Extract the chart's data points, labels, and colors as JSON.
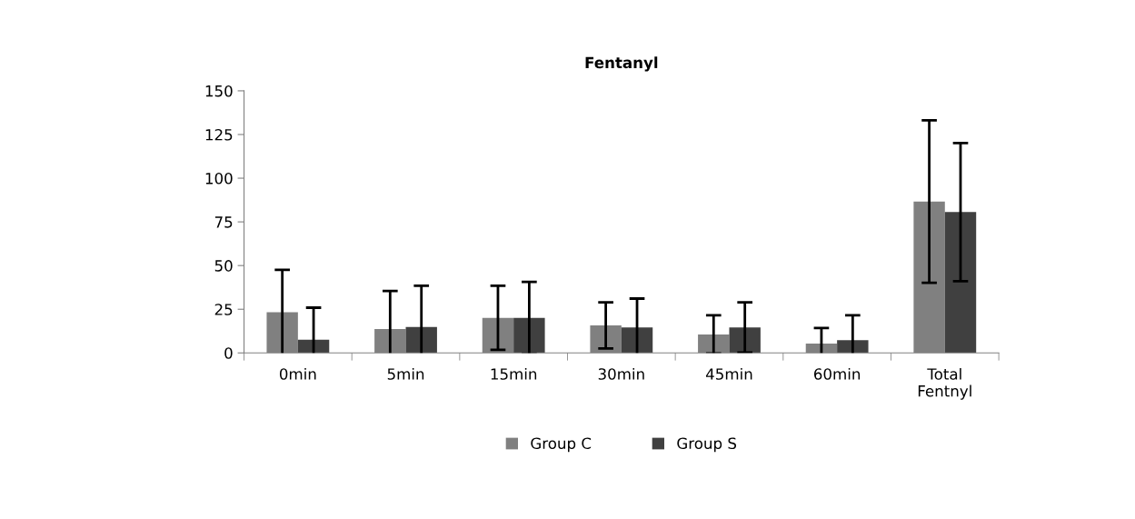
{
  "chart_data": {
    "type": "bar",
    "title": "Fentanyl",
    "categories": [
      "0min",
      "5min",
      "15min",
      "30min",
      "45min",
      "60min",
      "Total\nFentnyl"
    ],
    "series": [
      {
        "name": "Group C",
        "color": "#808080",
        "values": [
          23.3,
          13.7,
          20.1,
          15.8,
          10.6,
          5.4,
          86.6
        ],
        "errors": [
          24.3,
          21.7,
          18.3,
          13.2,
          10.9,
          8.8,
          46.5
        ]
      },
      {
        "name": "Group S",
        "color": "#404040",
        "values": [
          7.6,
          14.9,
          20.1,
          14.6,
          14.6,
          7.3,
          80.6
        ],
        "errors": [
          18.3,
          23.5,
          20.5,
          16.5,
          14.4,
          14.2,
          39.5
        ]
      }
    ],
    "ylim": [
      0,
      150
    ],
    "yticks": [
      0,
      25,
      50,
      75,
      100,
      125,
      150
    ],
    "grid": false,
    "legend": "bottom"
  }
}
